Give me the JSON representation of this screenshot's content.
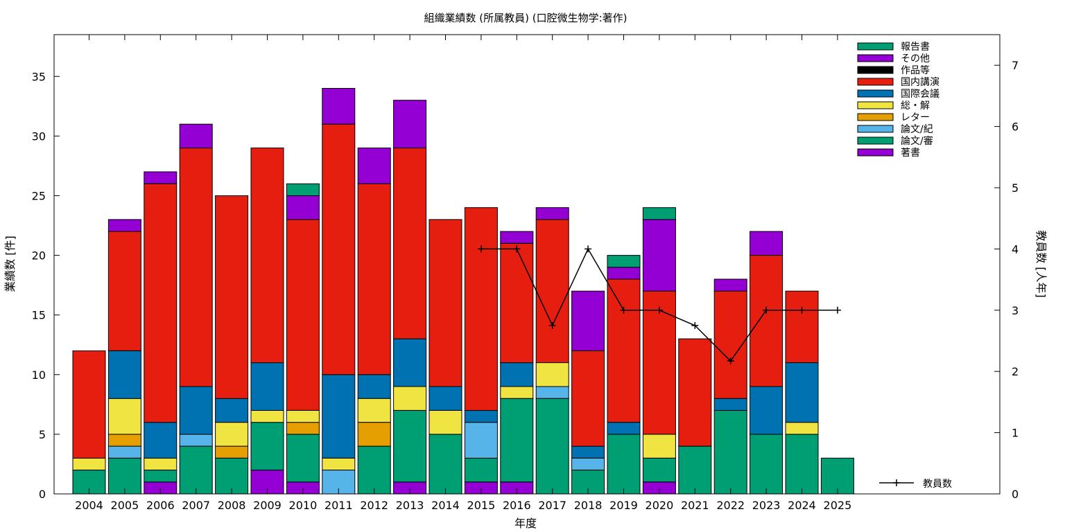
{
  "chart_data": {
    "type": "bar",
    "stacked": true,
    "title": "組織業績数 (所属教員) (口腔微生物学:著作)",
    "xlabel": "年度",
    "ylabel": "業績数 [件]",
    "y2label": "教員数 [人年]",
    "ylim": [
      0,
      38.5
    ],
    "y2lim": [
      0,
      7.5
    ],
    "yticks": [
      "0",
      "5",
      "10",
      "15",
      "20",
      "25",
      "30",
      "35"
    ],
    "y2ticks": [
      "0",
      "1",
      "2",
      "3",
      "4",
      "5",
      "6",
      "7"
    ],
    "grid": false,
    "legend_position": "top-right",
    "categories": [
      "2004",
      "2005",
      "2006",
      "2007",
      "2008",
      "2009",
      "2010",
      "2011",
      "2012",
      "2013",
      "2014",
      "2015",
      "2016",
      "2017",
      "2018",
      "2019",
      "2020",
      "2021",
      "2022",
      "2023",
      "2024",
      "2025"
    ],
    "series": [
      {
        "name": "著書",
        "color": "#9400d3",
        "values": [
          0,
          0,
          1,
          0,
          0,
          2,
          1,
          0,
          0,
          1,
          0,
          1,
          1,
          0,
          0,
          0,
          1,
          0,
          0,
          0,
          0,
          0
        ]
      },
      {
        "name": "論文/審",
        "color": "#009e73",
        "values": [
          2,
          3,
          1,
          4,
          3,
          4,
          4,
          0,
          4,
          6,
          5,
          2,
          7,
          8,
          2,
          5,
          2,
          4,
          7,
          5,
          5,
          3
        ]
      },
      {
        "name": "論文/紀",
        "color": "#56b4e9",
        "values": [
          0,
          1,
          0,
          1,
          0,
          0,
          0,
          2,
          0,
          0,
          0,
          3,
          0,
          1,
          1,
          0,
          0,
          0,
          0,
          0,
          0,
          0
        ]
      },
      {
        "name": "レター",
        "color": "#e69f00",
        "values": [
          0,
          1,
          0,
          0,
          1,
          0,
          1,
          0,
          2,
          0,
          0,
          0,
          0,
          0,
          0,
          0,
          0,
          0,
          0,
          0,
          0,
          0
        ]
      },
      {
        "name": "総・解",
        "color": "#f0e442",
        "values": [
          1,
          3,
          1,
          0,
          2,
          1,
          1,
          1,
          2,
          2,
          2,
          0,
          1,
          2,
          0,
          0,
          2,
          0,
          0,
          0,
          1,
          0
        ]
      },
      {
        "name": "国際会議",
        "color": "#0072b2",
        "values": [
          0,
          4,
          3,
          4,
          2,
          4,
          0,
          7,
          2,
          4,
          2,
          1,
          2,
          0,
          1,
          1,
          0,
          0,
          1,
          4,
          5,
          0
        ]
      },
      {
        "name": "国内講演",
        "color": "#e51e10",
        "values": [
          9,
          10,
          20,
          20,
          17,
          18,
          16,
          21,
          16,
          16,
          14,
          17,
          10,
          12,
          8,
          12,
          12,
          9,
          9,
          11,
          6,
          0
        ]
      },
      {
        "name": "作品等",
        "color": "#000000",
        "values": [
          0,
          0,
          0,
          0,
          0,
          0,
          0,
          0,
          0,
          0,
          0,
          0,
          0,
          0,
          0,
          0,
          0,
          0,
          0,
          0,
          0,
          0
        ]
      },
      {
        "name": "その他",
        "color": "#9400d3",
        "values": [
          0,
          1,
          1,
          2,
          0,
          0,
          2,
          3,
          3,
          4,
          0,
          0,
          1,
          1,
          5,
          1,
          6,
          0,
          1,
          2,
          0,
          0
        ]
      },
      {
        "name": "報告書",
        "color": "#009e73",
        "values": [
          0,
          0,
          0,
          0,
          0,
          0,
          1,
          0,
          0,
          0,
          0,
          0,
          0,
          0,
          0,
          1,
          1,
          0,
          0,
          0,
          0,
          0
        ]
      }
    ],
    "legend_order": [
      "報告書",
      "その他",
      "作品等",
      "国内講演",
      "国際会議",
      "総・解",
      "レター",
      "論文/紀",
      "論文/審",
      "著書"
    ],
    "line_series": {
      "name": "教員数",
      "axis": "y2",
      "color": "#000000",
      "points": [
        {
          "x": "2015",
          "y": 4
        },
        {
          "x": "2016",
          "y": 4
        },
        {
          "x": "2017",
          "y": 2.75
        },
        {
          "x": "2018",
          "y": 4
        },
        {
          "x": "2019",
          "y": 3
        },
        {
          "x": "2020",
          "y": 3
        },
        {
          "x": "2021",
          "y": 2.75
        },
        {
          "x": "2022",
          "y": 2.17
        },
        {
          "x": "2023",
          "y": 3
        },
        {
          "x": "2024",
          "y": 3
        },
        {
          "x": "2025",
          "y": 3
        }
      ]
    }
  }
}
